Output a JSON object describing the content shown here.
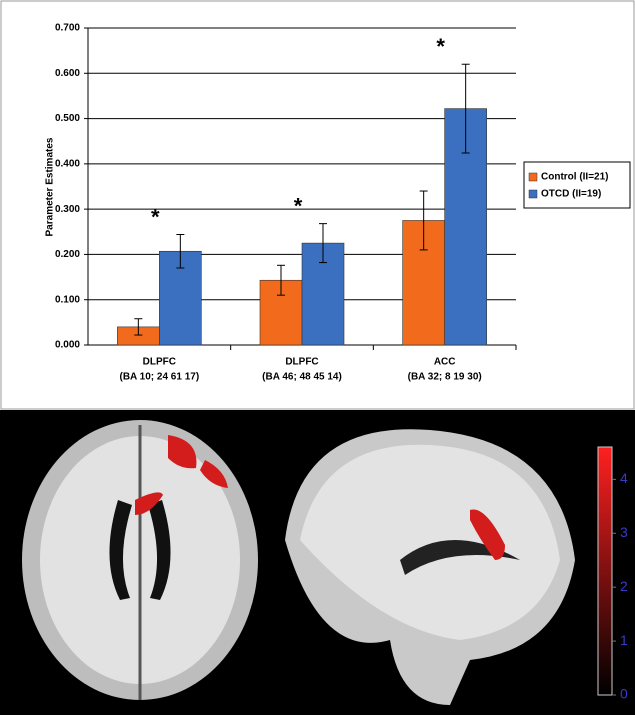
{
  "chart_data": {
    "type": "bar",
    "y_label": "Parameter Estimates",
    "categories": [
      [
        "DLPFC",
        "(BA 10; 24 61 17)"
      ],
      [
        "DLPFC",
        "(BA 46; 48 45 14)"
      ],
      [
        "ACC",
        "(BA 32; 8 19 30)"
      ]
    ],
    "series": [
      {
        "name": "Control (II=21)",
        "color": "#f26b1d",
        "values": [
          0.04,
          0.143,
          0.275
        ],
        "errors": [
          0.018,
          0.033,
          0.065
        ]
      },
      {
        "name": "OTCD (II=19)",
        "color": "#3b6fc0",
        "values": [
          0.207,
          0.225,
          0.522
        ],
        "errors": [
          0.037,
          0.043,
          0.098
        ]
      }
    ],
    "significance": [
      "*",
      "*",
      "*"
    ],
    "ylim": [
      0,
      0.7
    ],
    "yticks": [
      {
        "value": 0,
        "label": "0.000"
      },
      {
        "value": 0.1,
        "label": "0.100"
      },
      {
        "value": 0.2,
        "label": "0.200"
      },
      {
        "value": 0.3,
        "label": "0.300"
      },
      {
        "value": 0.4,
        "label": "0.400"
      },
      {
        "value": 0.5,
        "label": "0.500"
      },
      {
        "value": 0.6,
        "label": "0.600"
      },
      {
        "value": 0.7,
        "label": "0.700"
      }
    ],
    "grid": true,
    "legend": "right"
  },
  "colorbar": {
    "lim": [
      0,
      4.6
    ],
    "ticks": [
      0,
      1,
      2,
      3,
      4
    ]
  }
}
